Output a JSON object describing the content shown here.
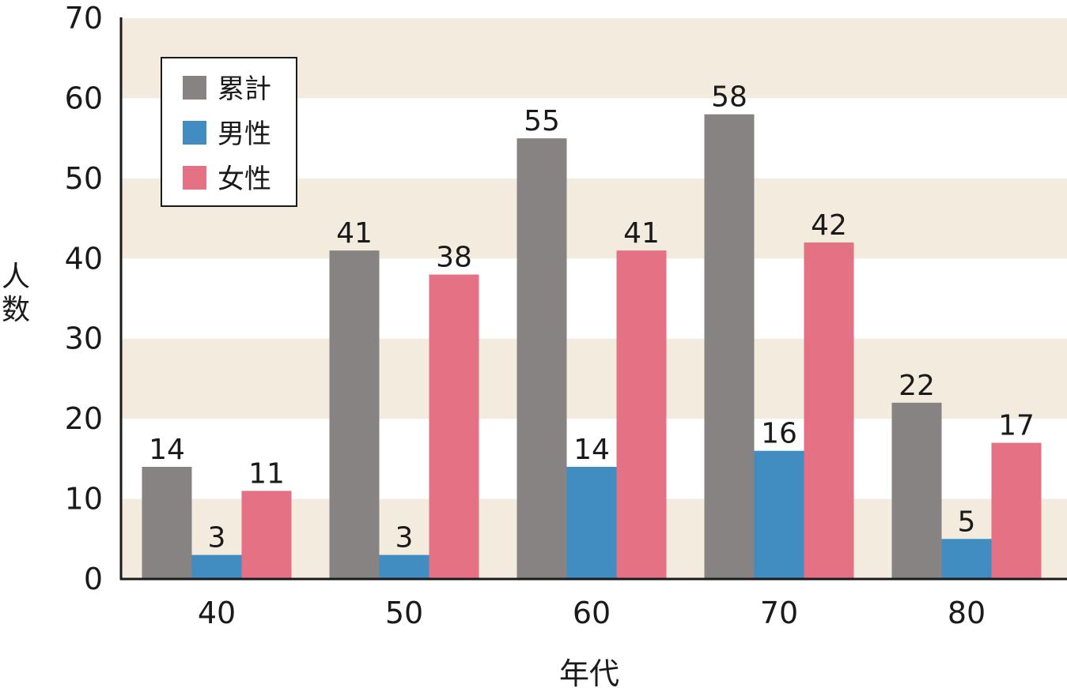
{
  "chart_data": {
    "type": "bar",
    "title": "",
    "xlabel": "年代",
    "ylabel": "人数",
    "ylim": [
      0,
      70
    ],
    "yticks": [
      0,
      10,
      20,
      30,
      40,
      50,
      60,
      70
    ],
    "categories": [
      "40",
      "50",
      "60",
      "70",
      "80"
    ],
    "series": [
      {
        "name": "累計",
        "color": "#868382",
        "values": [
          14,
          41,
          55,
          58,
          22
        ]
      },
      {
        "name": "男性",
        "color": "#418cc0",
        "values": [
          3,
          3,
          14,
          16,
          5
        ]
      },
      {
        "name": "女性",
        "color": "#e57185",
        "values": [
          11,
          38,
          41,
          42,
          17
        ]
      }
    ],
    "grid": "alternating horizontal bands",
    "band_colors": [
      "#f3ebde",
      "#ffffff"
    ],
    "legend_position": "upper-left inside plot",
    "data_labels": true
  }
}
